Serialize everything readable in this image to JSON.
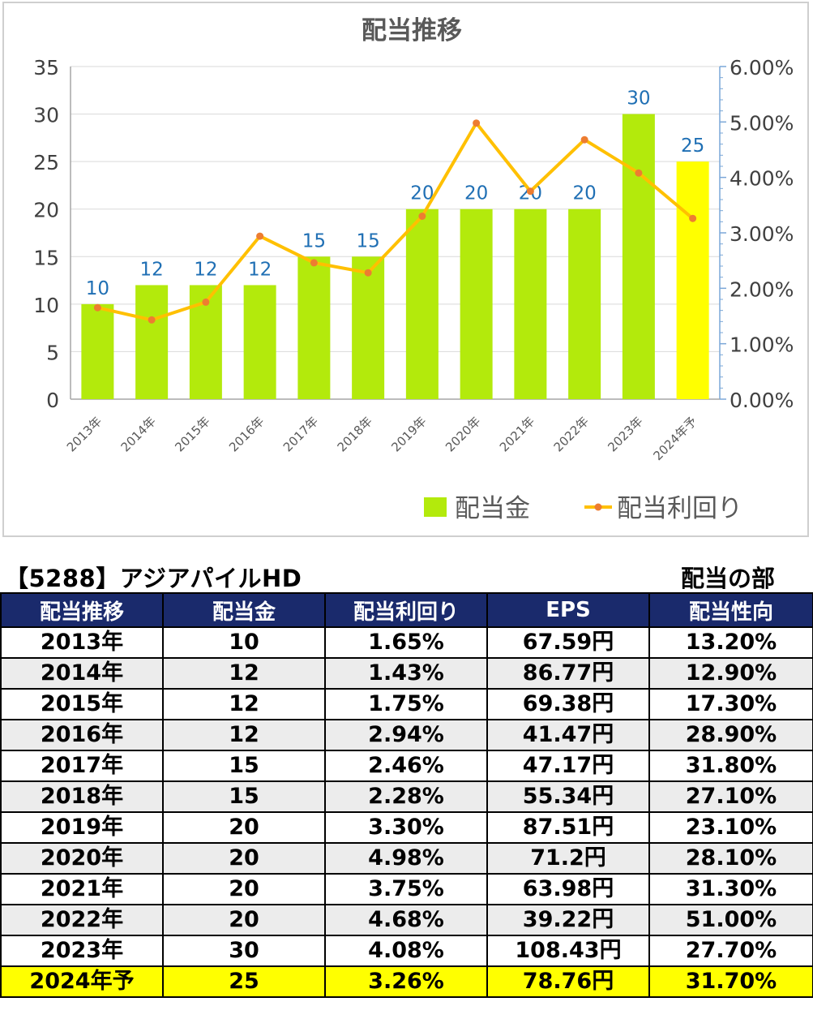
{
  "chart_data": {
    "type": "bar",
    "title": "配当推移",
    "categories": [
      "2013年",
      "2014年",
      "2015年",
      "2016年",
      "2017年",
      "2018年",
      "2019年",
      "2020年",
      "2021年",
      "2022年",
      "2023年",
      "2024年予"
    ],
    "series": [
      {
        "name": "配当金",
        "type": "bar",
        "axis": "left",
        "color": "#b3ea0c",
        "highlight_color": "#ffff00",
        "values": [
          10,
          12,
          12,
          12,
          15,
          15,
          20,
          20,
          20,
          20,
          30,
          25
        ]
      },
      {
        "name": "配当利回り",
        "type": "line",
        "axis": "right",
        "color": "#ffc000",
        "marker_color": "#ed7d31",
        "values": [
          1.65,
          1.43,
          1.75,
          2.94,
          2.46,
          2.28,
          3.3,
          4.98,
          3.75,
          4.68,
          4.08,
          3.26
        ]
      }
    ],
    "ylim": [
      0,
      35
    ],
    "yticks": [
      0,
      5,
      10,
      15,
      20,
      25,
      30,
      35
    ],
    "y2lim": [
      0,
      6
    ],
    "y2ticks": [
      "0.00%",
      "1.00%",
      "2.00%",
      "3.00%",
      "4.00%",
      "5.00%",
      "6.00%"
    ],
    "data_labels": [
      "10",
      "12",
      "12",
      "12",
      "15",
      "15",
      "20",
      "20",
      "20",
      "20",
      "30",
      "25"
    ],
    "data_label_color": "#1f6fb4",
    "legend_position": "bottom-right",
    "grid": true
  },
  "header": {
    "stock": "【5288】アジアパイルHD",
    "section": "配当の部"
  },
  "table": {
    "columns": [
      "配当推移",
      "配当金",
      "配当利回り",
      "EPS",
      "配当性向"
    ],
    "rows": [
      [
        "2013年",
        "10",
        "1.65%",
        "67.59円",
        "13.20%"
      ],
      [
        "2014年",
        "12",
        "1.43%",
        "86.77円",
        "12.90%"
      ],
      [
        "2015年",
        "12",
        "1.75%",
        "69.38円",
        "17.30%"
      ],
      [
        "2016年",
        "12",
        "2.94%",
        "41.47円",
        "28.90%"
      ],
      [
        "2017年",
        "15",
        "2.46%",
        "47.17円",
        "31.80%"
      ],
      [
        "2018年",
        "15",
        "2.28%",
        "55.34円",
        "27.10%"
      ],
      [
        "2019年",
        "20",
        "3.30%",
        "87.51円",
        "23.10%"
      ],
      [
        "2020年",
        "20",
        "4.98%",
        "71.2円",
        "28.10%"
      ],
      [
        "2021年",
        "20",
        "3.75%",
        "63.98円",
        "31.30%"
      ],
      [
        "2022年",
        "20",
        "4.68%",
        "39.22円",
        "51.00%"
      ],
      [
        "2023年",
        "30",
        "4.08%",
        "108.43円",
        "27.70%"
      ],
      [
        "2024年予",
        "25",
        "3.26%",
        "78.76円",
        "31.70%"
      ]
    ]
  }
}
